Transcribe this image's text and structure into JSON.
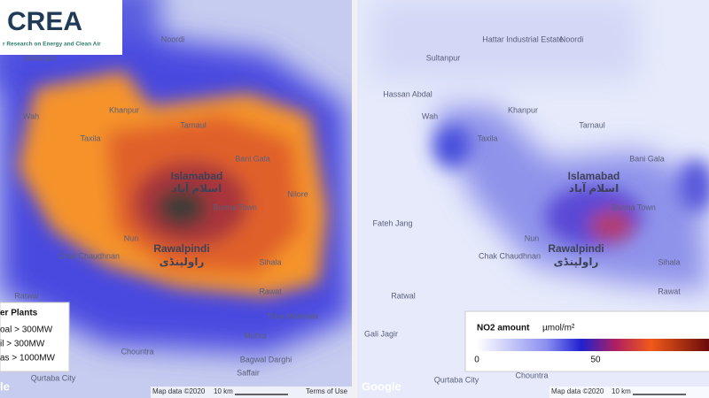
{
  "logo": {
    "title": "CREA",
    "subtitle": "r Research on Energy and Clean Air"
  },
  "places": [
    "Noordi",
    "Hattar Industrial Estate",
    "Sultanpur",
    "Hassan Abdal",
    "Wah",
    "Khanpur",
    "Taxila",
    "Tarnaul",
    "Islamabad",
    "اسلام آباد",
    "Bani Gala",
    "Nilore",
    "Burma Town",
    "Nun",
    "Fateh Jang",
    "Rawalpindi",
    "راولپنڈی",
    "Chak Chaudhnan",
    "Sihala",
    "Rawat",
    "Ratwal",
    "Gali Jagir",
    "Toba Mankiala",
    "Mohra",
    "Bagwal Darghi",
    "Saffair",
    "Chountra",
    "Qurtaba City"
  ],
  "power_plant_legend": {
    "title": "er Plants",
    "items": [
      "oal > 300MW",
      "il > 300MW",
      "as > 1000MW"
    ]
  },
  "no2_legend": {
    "title": "NO2 amount",
    "unit": "µmol/m²",
    "ticks": [
      0,
      50
    ]
  },
  "footer": {
    "map_data": "Map data ©2020",
    "scale": "10 km",
    "terms": "Terms of Use",
    "google": "Google",
    "google_cropped": "le"
  }
}
